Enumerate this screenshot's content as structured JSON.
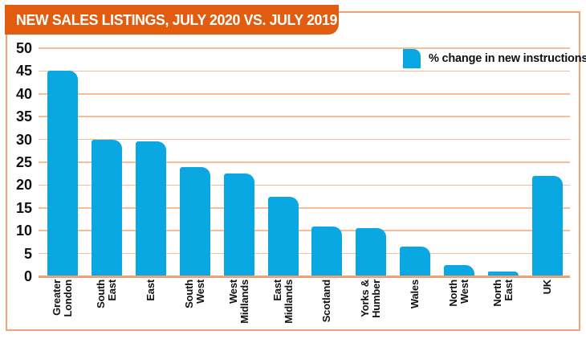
{
  "header": {
    "title": "NEW SALES LISTINGS, JULY 2020 VS. JULY 2019"
  },
  "legend": {
    "label": "% change in new instructions"
  },
  "colors": {
    "banner_orange": "#E25C10",
    "bar_cyan": "#0AA8E2",
    "gridline_peach": "#F9BC95",
    "axis_peach": "#F29F73",
    "frame_border": "#F2A379",
    "text_black": "#111111",
    "title_text": "#FFFFFF"
  },
  "chart_data": {
    "type": "bar",
    "title": "NEW SALES LISTINGS, JULY 2020 VS. JULY 2019",
    "legend": "% change in new instructions",
    "legend_position": "top-right",
    "xlabel": "",
    "ylabel": "",
    "categories": [
      "Greater London",
      "South East",
      "East",
      "South West",
      "West Midlands",
      "East Midlands",
      "Scotland",
      "Yorks & Humber",
      "Wales",
      "North West",
      "North East",
      "UK"
    ],
    "category_lines": [
      [
        "Greater",
        "London"
      ],
      [
        "South",
        "East"
      ],
      [
        "East"
      ],
      [
        "South",
        "West"
      ],
      [
        "West",
        "Midlands"
      ],
      [
        "East",
        "Midlands"
      ],
      [
        "Scotland"
      ],
      [
        "Yorks &",
        "Humber"
      ],
      [
        "Wales"
      ],
      [
        "North",
        "West"
      ],
      [
        "North",
        "East"
      ],
      [
        "UK"
      ]
    ],
    "values": [
      45,
      30,
      29.5,
      24,
      22.5,
      17.5,
      11,
      10.5,
      6.5,
      2.5,
      1,
      22
    ],
    "ylim": [
      0,
      50
    ],
    "yticks": [
      0,
      5,
      10,
      15,
      20,
      25,
      30,
      35,
      40,
      45,
      50
    ],
    "grid": true,
    "grid_orientation": "horizontal"
  }
}
